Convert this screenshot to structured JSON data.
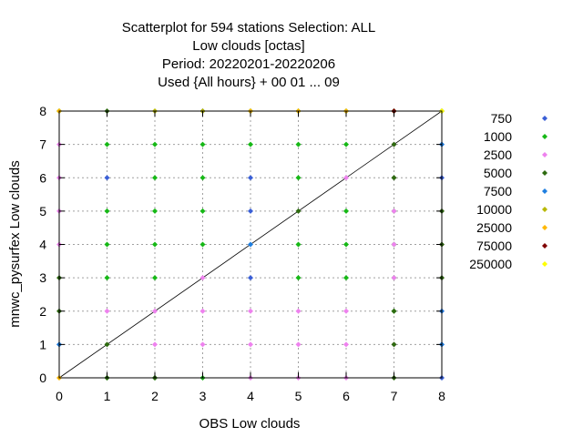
{
  "chart_data": {
    "type": "scatter",
    "title_lines": [
      "Scatterplot for  594 stations Selection: ALL",
      "Low clouds [octas]",
      "Period: 20220201-20220206",
      "Used {All hours} + 00 01 ... 09"
    ],
    "xlabel": "OBS Low clouds",
    "ylabel": "mnwc_pysurfex Low clouds",
    "xlim": [
      0,
      8
    ],
    "ylim": [
      0,
      8
    ],
    "x_ticks": [
      "0",
      "1",
      "2",
      "3",
      "4",
      "5",
      "6",
      "7",
      "8"
    ],
    "y_ticks": [
      "0",
      "1",
      "2",
      "3",
      "4",
      "5",
      "6",
      "7",
      "8"
    ],
    "grid": true,
    "diagonal": true,
    "legend_position": "right",
    "series": [
      {
        "name": "750",
        "color": "#3a5fd6",
        "points": [
          [
            1,
            6
          ],
          [
            4,
            6
          ],
          [
            4,
            5
          ],
          [
            4,
            3
          ],
          [
            0,
            1
          ],
          [
            8,
            7
          ],
          [
            8,
            6
          ],
          [
            8,
            1
          ],
          [
            8,
            0
          ],
          [
            3,
            8
          ]
        ]
      },
      {
        "name": "1000",
        "color": "#17b817",
        "points": [
          [
            1,
            7
          ],
          [
            1,
            5
          ],
          [
            1,
            4
          ],
          [
            1,
            3
          ],
          [
            2,
            6
          ],
          [
            2,
            5
          ],
          [
            2,
            4
          ],
          [
            2,
            3
          ],
          [
            2,
            7
          ],
          [
            3,
            6
          ],
          [
            3,
            5
          ],
          [
            3,
            4
          ],
          [
            3,
            7
          ],
          [
            4,
            7
          ],
          [
            5,
            6
          ],
          [
            5,
            4
          ],
          [
            5,
            3
          ],
          [
            5,
            7
          ],
          [
            6,
            5
          ],
          [
            6,
            4
          ],
          [
            6,
            3
          ],
          [
            6,
            7
          ],
          [
            7,
            5
          ],
          [
            7,
            4
          ],
          [
            7,
            3
          ],
          [
            7,
            2
          ],
          [
            7,
            6
          ],
          [
            1,
            0
          ],
          [
            2,
            0
          ],
          [
            3,
            0
          ],
          [
            0,
            8
          ],
          [
            4,
            8
          ],
          [
            5,
            8
          ],
          [
            6,
            8
          ],
          [
            7,
            8
          ]
        ]
      },
      {
        "name": "2500",
        "color": "#ee82ee",
        "points": [
          [
            0,
            7
          ],
          [
            0,
            6
          ],
          [
            0,
            5
          ],
          [
            0,
            4
          ],
          [
            1,
            2
          ],
          [
            2,
            2
          ],
          [
            2,
            1
          ],
          [
            3,
            2
          ],
          [
            3,
            1
          ],
          [
            3,
            3
          ],
          [
            4,
            2
          ],
          [
            4,
            1
          ],
          [
            4,
            0
          ],
          [
            5,
            2
          ],
          [
            5,
            1
          ],
          [
            5,
            0
          ],
          [
            6,
            6
          ],
          [
            6,
            2
          ],
          [
            6,
            1
          ],
          [
            6,
            0
          ],
          [
            7,
            7
          ],
          [
            7,
            6
          ],
          [
            7,
            5
          ],
          [
            7,
            4
          ],
          [
            7,
            3
          ],
          [
            7,
            1
          ],
          [
            8,
            5
          ],
          [
            8,
            4
          ],
          [
            8,
            3
          ],
          [
            8,
            2
          ]
        ]
      },
      {
        "name": "5000",
        "color": "#2e6b10",
        "points": [
          [
            0,
            3
          ],
          [
            0,
            2
          ],
          [
            1,
            8
          ],
          [
            1,
            1
          ],
          [
            7,
            7
          ],
          [
            7,
            6
          ],
          [
            7,
            2
          ],
          [
            7,
            1
          ],
          [
            7,
            0
          ],
          [
            8,
            5
          ],
          [
            8,
            4
          ],
          [
            8,
            3
          ],
          [
            8,
            8
          ],
          [
            5,
            5
          ],
          [
            1,
            0
          ],
          [
            2,
            0
          ]
        ]
      },
      {
        "name": "7500",
        "color": "#1f7fe0",
        "points": [
          [
            4,
            4
          ],
          [
            0,
            1
          ],
          [
            8,
            7
          ],
          [
            8,
            2
          ],
          [
            8,
            1
          ]
        ]
      },
      {
        "name": "10000",
        "color": "#b8b800",
        "points": [
          [
            2,
            8
          ],
          [
            3,
            8
          ]
        ]
      },
      {
        "name": "25000",
        "color": "#ffb800",
        "points": [
          [
            0,
            8
          ],
          [
            4,
            8
          ],
          [
            5,
            8
          ],
          [
            6,
            8
          ],
          [
            0,
            0
          ]
        ]
      },
      {
        "name": "75000",
        "color": "#800000",
        "points": [
          [
            7,
            8
          ]
        ]
      },
      {
        "name": "250000",
        "color": "#ffff00",
        "points": [
          [
            8,
            8
          ]
        ]
      }
    ]
  }
}
